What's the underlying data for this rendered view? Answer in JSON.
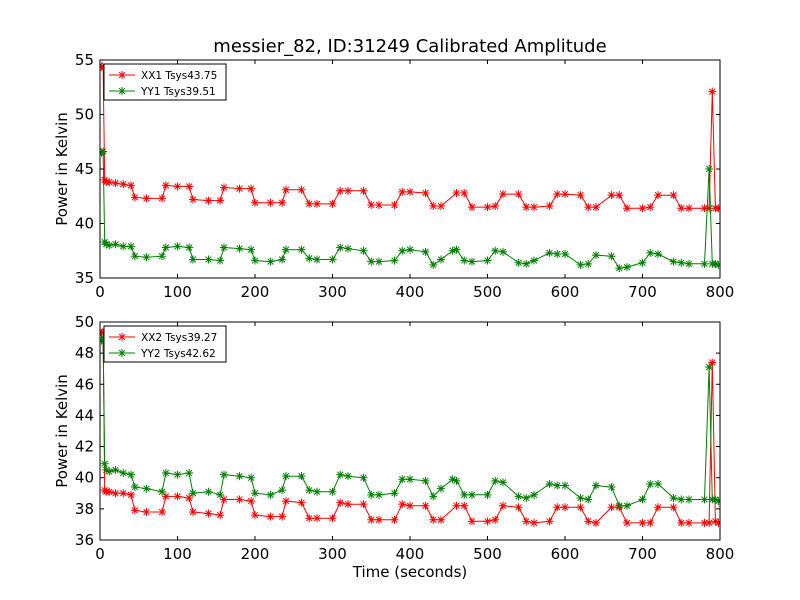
{
  "title": "messier_82, ID:31249 Calibrated Amplitude",
  "colors": {
    "red": "#ff0000",
    "green": "#008000",
    "axis": "#000000"
  },
  "chart_data": [
    {
      "type": "line",
      "ylabel": "Power in Kelvin",
      "xlabel": "",
      "xlim": [
        0,
        800
      ],
      "ylim": [
        35,
        55
      ],
      "xticks": [
        0,
        100,
        200,
        300,
        400,
        500,
        600,
        700,
        800
      ],
      "yticks": [
        35,
        40,
        45,
        50,
        55
      ],
      "legend_position": "top-left",
      "series": [
        {
          "name": "XX1 Tsys43.75",
          "color": "#ff0000",
          "x": [
            0,
            2,
            4,
            6,
            8,
            12,
            20,
            30,
            40,
            45,
            60,
            80,
            85,
            100,
            115,
            120,
            140,
            155,
            160,
            180,
            195,
            200,
            220,
            235,
            240,
            260,
            270,
            280,
            300,
            310,
            320,
            340,
            350,
            360,
            380,
            390,
            400,
            420,
            430,
            440,
            460,
            470,
            480,
            500,
            510,
            520,
            540,
            550,
            560,
            580,
            590,
            600,
            620,
            630,
            640,
            660,
            670,
            680,
            700,
            710,
            720,
            740,
            750,
            760,
            780,
            786,
            790,
            794,
            798
          ],
          "y": [
            54.5,
            54.4,
            54.3,
            44,
            43.8,
            43.8,
            43.7,
            43.6,
            43.5,
            42.4,
            42.3,
            42.3,
            43.5,
            43.4,
            43.4,
            42.2,
            42.1,
            42.1,
            43.3,
            43.2,
            43.2,
            41.9,
            41.9,
            41.9,
            43.1,
            43.1,
            41.8,
            41.8,
            41.8,
            43.0,
            43.0,
            43.0,
            41.7,
            41.7,
            41.7,
            42.9,
            42.9,
            42.8,
            41.6,
            41.6,
            42.8,
            42.8,
            41.5,
            41.5,
            41.6,
            42.7,
            42.7,
            41.5,
            41.5,
            41.6,
            42.7,
            42.7,
            42.6,
            41.5,
            41.5,
            42.6,
            42.6,
            41.4,
            41.4,
            41.5,
            42.6,
            42.6,
            41.4,
            41.4,
            41.4,
            41.4,
            52.1,
            41.4,
            41.4
          ]
        },
        {
          "name": "YY1 Tsys39.51",
          "color": "#008000",
          "x": [
            0,
            2,
            4,
            6,
            8,
            12,
            20,
            30,
            40,
            45,
            60,
            80,
            85,
            100,
            115,
            120,
            140,
            155,
            160,
            180,
            195,
            200,
            220,
            235,
            240,
            260,
            270,
            280,
            300,
            310,
            320,
            340,
            350,
            360,
            380,
            390,
            400,
            420,
            430,
            440,
            455,
            460,
            470,
            480,
            500,
            510,
            520,
            540,
            550,
            560,
            580,
            590,
            600,
            620,
            630,
            640,
            660,
            670,
            680,
            700,
            710,
            720,
            740,
            750,
            760,
            780,
            786,
            790,
            794,
            798
          ],
          "y": [
            46.5,
            46.5,
            46.6,
            38.3,
            38.1,
            38.0,
            38.1,
            37.9,
            37.9,
            37.0,
            36.9,
            37.0,
            37.8,
            37.9,
            37.8,
            36.7,
            36.7,
            36.6,
            37.8,
            37.7,
            37.6,
            36.6,
            36.5,
            36.7,
            37.6,
            37.6,
            36.8,
            36.7,
            36.7,
            37.8,
            37.7,
            37.5,
            36.5,
            36.5,
            36.6,
            37.5,
            37.6,
            37.4,
            36.2,
            36.7,
            37.5,
            37.6,
            36.6,
            36.5,
            36.6,
            37.5,
            37.4,
            36.4,
            36.3,
            36.6,
            37.3,
            37.2,
            37.2,
            36.2,
            36.3,
            37.1,
            37.0,
            35.9,
            36.0,
            36.4,
            37.3,
            37.2,
            36.5,
            36.4,
            36.3,
            36.3,
            45.0,
            36.3,
            36.3,
            36.2
          ]
        }
      ]
    },
    {
      "type": "line",
      "ylabel": "Power in Kelvin",
      "xlabel": "Time (seconds)",
      "xlim": [
        0,
        800
      ],
      "ylim": [
        36,
        50
      ],
      "xticks": [
        0,
        100,
        200,
        300,
        400,
        500,
        600,
        700,
        800
      ],
      "yticks": [
        36,
        38,
        40,
        42,
        44,
        46,
        48,
        50
      ],
      "legend_position": "top-left",
      "series": [
        {
          "name": "XX2 Tsys39.27",
          "color": "#ff0000",
          "x": [
            0,
            2,
            4,
            6,
            8,
            12,
            20,
            30,
            40,
            45,
            60,
            80,
            85,
            100,
            115,
            120,
            140,
            155,
            160,
            180,
            195,
            200,
            220,
            235,
            240,
            260,
            270,
            280,
            300,
            310,
            320,
            340,
            350,
            360,
            380,
            390,
            400,
            420,
            430,
            440,
            460,
            470,
            480,
            500,
            510,
            520,
            540,
            550,
            560,
            580,
            590,
            600,
            620,
            630,
            640,
            660,
            670,
            680,
            700,
            710,
            720,
            740,
            750,
            760,
            780,
            786,
            790,
            794,
            798
          ],
          "y": [
            49.4,
            49.3,
            49.3,
            39.2,
            39.1,
            39.1,
            39.0,
            39.0,
            38.9,
            37.9,
            37.8,
            37.8,
            38.8,
            38.8,
            38.7,
            37.8,
            37.7,
            37.6,
            38.6,
            38.6,
            38.5,
            37.6,
            37.5,
            37.5,
            38.5,
            38.4,
            37.4,
            37.4,
            37.4,
            38.4,
            38.3,
            38.3,
            37.3,
            37.3,
            37.3,
            38.3,
            38.2,
            38.2,
            37.3,
            37.3,
            38.2,
            38.2,
            37.2,
            37.2,
            37.3,
            38.2,
            38.1,
            37.2,
            37.1,
            37.2,
            38.1,
            38.1,
            38.1,
            37.2,
            37.1,
            38.1,
            38.1,
            37.1,
            37.1,
            37.1,
            38.1,
            38.1,
            37.1,
            37.1,
            37.1,
            37.1,
            47.4,
            37.2,
            37.1
          ]
        },
        {
          "name": "YY2 Tsys42.62",
          "color": "#008000",
          "x": [
            0,
            2,
            4,
            6,
            8,
            12,
            20,
            30,
            40,
            45,
            60,
            80,
            85,
            100,
            115,
            120,
            140,
            155,
            160,
            180,
            195,
            200,
            220,
            235,
            240,
            260,
            270,
            280,
            300,
            310,
            320,
            340,
            350,
            360,
            380,
            390,
            400,
            420,
            430,
            440,
            455,
            460,
            470,
            480,
            500,
            510,
            520,
            540,
            550,
            560,
            580,
            590,
            600,
            620,
            630,
            640,
            660,
            670,
            680,
            700,
            710,
            720,
            740,
            750,
            760,
            780,
            786,
            790,
            794,
            798
          ],
          "y": [
            48.8,
            48.8,
            49.0,
            40.9,
            40.5,
            40.4,
            40.5,
            40.3,
            40.2,
            39.4,
            39.3,
            39.1,
            40.3,
            40.2,
            40.3,
            39.0,
            39.1,
            38.9,
            40.2,
            40.1,
            40.0,
            39.0,
            38.9,
            39.2,
            40.1,
            40.1,
            39.2,
            39.1,
            39.1,
            40.2,
            40.1,
            40.0,
            38.9,
            38.9,
            39.0,
            39.9,
            39.9,
            39.8,
            38.8,
            39.3,
            39.9,
            39.8,
            38.9,
            38.9,
            38.9,
            39.8,
            39.7,
            38.8,
            38.7,
            38.9,
            39.6,
            39.5,
            39.5,
            38.7,
            38.6,
            39.5,
            39.4,
            38.2,
            38.2,
            38.6,
            39.6,
            39.6,
            38.7,
            38.6,
            38.6,
            38.6,
            47.1,
            38.6,
            38.6,
            38.5
          ]
        }
      ]
    }
  ]
}
